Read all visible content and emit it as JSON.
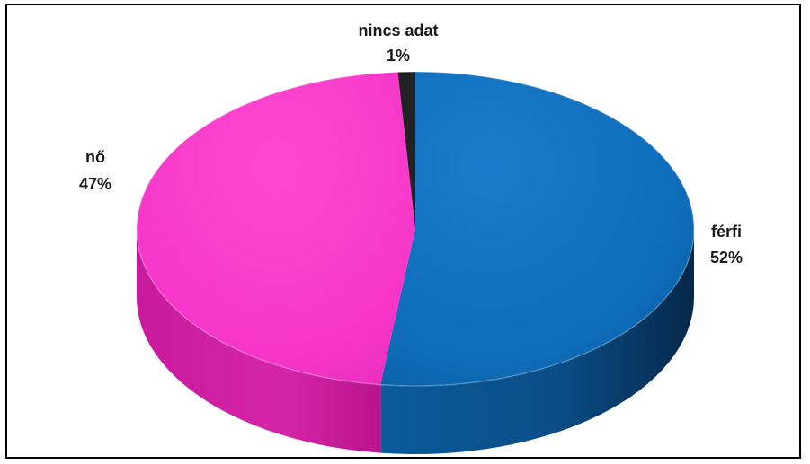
{
  "chart_data": {
    "type": "pie",
    "title": "",
    "categories": [
      "férfi",
      "nő",
      "nincs adat"
    ],
    "values": [
      52,
      47,
      1
    ],
    "value_labels": [
      "52%",
      "47%",
      "1%"
    ],
    "colors": [
      "#0E6CB8",
      "#F535C8",
      "#222222"
    ],
    "style": "3d",
    "legend": "none"
  }
}
